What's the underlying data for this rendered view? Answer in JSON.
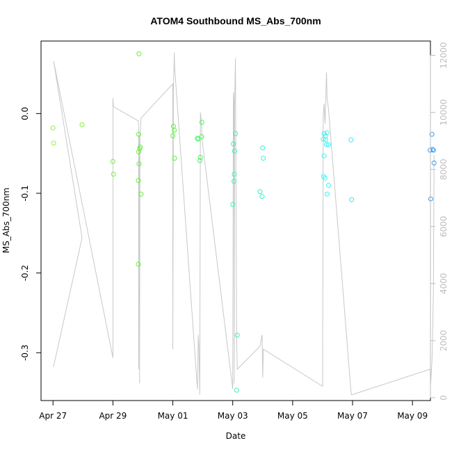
{
  "chart_data": {
    "type": "scatter",
    "title": "ATOM4 Southbound MS_Abs_700nm",
    "xlabel": "Date",
    "ylabel": "MS_Abs_700nm",
    "x_origin": "2018-04-27",
    "xlim": [
      -0.4,
      12.6
    ],
    "ylim": [
      -0.36,
      0.091
    ],
    "y2lim": [
      -100,
      12500
    ],
    "x_ticks": [
      {
        "value": 0,
        "label": "Apr 27"
      },
      {
        "value": 2,
        "label": "Apr 29"
      },
      {
        "value": 4,
        "label": "May 01"
      },
      {
        "value": 6,
        "label": "May 03"
      },
      {
        "value": 8,
        "label": "May 05"
      },
      {
        "value": 10,
        "label": "May 07"
      },
      {
        "value": 12,
        "label": "May 09"
      }
    ],
    "y_ticks": [
      {
        "value": 0.0,
        "label": "0.0"
      },
      {
        "value": -0.1,
        "label": "-0.1"
      },
      {
        "value": -0.2,
        "label": "-0.2"
      },
      {
        "value": -0.3,
        "label": "-0.3"
      }
    ],
    "y2_ticks": [
      {
        "value": 0,
        "label": "0"
      },
      {
        "value": 2000,
        "label": "2000"
      },
      {
        "value": 4000,
        "label": "4000"
      },
      {
        "value": 6000,
        "label": "6000"
      },
      {
        "value": 8000,
        "label": "8000"
      },
      {
        "value": 10000,
        "label": "10000"
      },
      {
        "value": 12000,
        "label": "12000"
      }
    ],
    "points": [
      {
        "x": 0.0,
        "y": -0.018,
        "color": "#8ff23c"
      },
      {
        "x": 0.02,
        "y": -0.037,
        "color": "#8ff23c"
      },
      {
        "x": 0.97,
        "y": -0.014,
        "color": "#84f23c"
      },
      {
        "x": 2.0,
        "y": -0.06,
        "color": "#74f23c"
      },
      {
        "x": 2.02,
        "y": -0.076,
        "color": "#74f23c"
      },
      {
        "x": 2.87,
        "y": 0.075,
        "color": "#66f23c"
      },
      {
        "x": 2.86,
        "y": -0.026,
        "color": "#66f23c"
      },
      {
        "x": 2.86,
        "y": -0.048,
        "color": "#66f23c"
      },
      {
        "x": 2.89,
        "y": -0.044,
        "color": "#66f23c"
      },
      {
        "x": 2.91,
        "y": -0.042,
        "color": "#66f23c"
      },
      {
        "x": 2.87,
        "y": -0.063,
        "color": "#66f23c"
      },
      {
        "x": 2.85,
        "y": -0.084,
        "color": "#66f23c"
      },
      {
        "x": 2.94,
        "y": -0.101,
        "color": "#66f23c"
      },
      {
        "x": 2.85,
        "y": -0.189,
        "color": "#66f23c"
      },
      {
        "x": 4.02,
        "y": -0.016,
        "color": "#5af23c"
      },
      {
        "x": 4.05,
        "y": -0.021,
        "color": "#5af23c"
      },
      {
        "x": 4.0,
        "y": -0.028,
        "color": "#5af23c"
      },
      {
        "x": 4.06,
        "y": -0.056,
        "color": "#5af23c"
      },
      {
        "x": 4.82,
        "y": -0.031,
        "color": "#44f259"
      },
      {
        "x": 4.85,
        "y": -0.032,
        "color": "#44f259"
      },
      {
        "x": 4.97,
        "y": -0.011,
        "color": "#44f259"
      },
      {
        "x": 4.96,
        "y": -0.029,
        "color": "#44f259"
      },
      {
        "x": 4.92,
        "y": -0.055,
        "color": "#44f259"
      },
      {
        "x": 4.9,
        "y": -0.059,
        "color": "#44f259"
      },
      {
        "x": 6.09,
        "y": -0.025,
        "color": "#3cf2b4"
      },
      {
        "x": 6.02,
        "y": -0.038,
        "color": "#3cf2b4"
      },
      {
        "x": 6.06,
        "y": -0.047,
        "color": "#3cf2b4"
      },
      {
        "x": 6.05,
        "y": -0.076,
        "color": "#3cf2b4"
      },
      {
        "x": 6.04,
        "y": -0.085,
        "color": "#3cf2b4"
      },
      {
        "x": 6.0,
        "y": -0.114,
        "color": "#3cf2b4"
      },
      {
        "x": 6.15,
        "y": -0.278,
        "color": "#3cf2b4"
      },
      {
        "x": 6.13,
        "y": -0.347,
        "color": "#3cf2b4"
      },
      {
        "x": 7.0,
        "y": -0.043,
        "color": "#3cf2c9"
      },
      {
        "x": 7.02,
        "y": -0.056,
        "color": "#3cf2c9"
      },
      {
        "x": 6.91,
        "y": -0.098,
        "color": "#3cf2c9"
      },
      {
        "x": 6.98,
        "y": -0.104,
        "color": "#3cf2c9"
      },
      {
        "x": 9.05,
        "y": -0.025,
        "color": "#3cf2f2"
      },
      {
        "x": 9.1,
        "y": -0.028,
        "color": "#3cf2f2"
      },
      {
        "x": 9.15,
        "y": -0.024,
        "color": "#3cf2f2"
      },
      {
        "x": 9.02,
        "y": -0.032,
        "color": "#3cf2f2"
      },
      {
        "x": 9.1,
        "y": -0.033,
        "color": "#3cf2f2"
      },
      {
        "x": 9.13,
        "y": -0.039,
        "color": "#3cf2f2"
      },
      {
        "x": 9.2,
        "y": -0.039,
        "color": "#3cf2f2"
      },
      {
        "x": 9.05,
        "y": -0.053,
        "color": "#3cf2f2"
      },
      {
        "x": 9.03,
        "y": -0.079,
        "color": "#3cf2f2"
      },
      {
        "x": 9.08,
        "y": -0.081,
        "color": "#3cf2f2"
      },
      {
        "x": 9.2,
        "y": -0.09,
        "color": "#3cf2f2"
      },
      {
        "x": 9.15,
        "y": -0.101,
        "color": "#3cf2f2"
      },
      {
        "x": 9.95,
        "y": -0.033,
        "color": "#3ce6f2"
      },
      {
        "x": 9.97,
        "y": -0.108,
        "color": "#3ce6f2"
      },
      {
        "x": 12.65,
        "y": -0.026,
        "color": "#3c9df2"
      },
      {
        "x": 12.59,
        "y": -0.046,
        "color": "#3c9df2"
      },
      {
        "x": 12.67,
        "y": -0.045,
        "color": "#3c9df2"
      },
      {
        "x": 12.7,
        "y": -0.046,
        "color": "#3c9df2"
      },
      {
        "x": 12.72,
        "y": -0.062,
        "color": "#3c9df2"
      },
      {
        "x": 12.61,
        "y": -0.107,
        "color": "#3c9df2"
      }
    ],
    "secondary_line": {
      "axis": "right",
      "color": "#c8c8c8",
      "x": [
        0.0,
        0.02,
        0.97,
        0.97,
        0.02,
        2.0,
        2.0,
        2.02,
        2.85,
        2.86,
        2.86,
        2.87,
        2.88,
        2.89,
        2.9,
        2.92,
        2.93,
        2.94,
        4.0,
        4.0,
        4.02,
        4.03,
        4.05,
        4.06,
        4.82,
        4.85,
        4.87,
        4.9,
        4.92,
        4.96,
        4.97,
        6.0,
        6.02,
        6.04,
        6.05,
        6.06,
        6.09,
        6.13,
        6.15,
        6.91,
        6.98,
        7.0,
        7.02,
        9.0,
        9.02,
        9.03,
        9.05,
        9.08,
        9.1,
        9.13,
        9.15,
        9.2,
        9.95,
        9.97,
        12.59,
        12.6,
        12.61,
        12.65,
        12.67,
        12.7,
        12.72
      ],
      "y": [
        1100,
        1100,
        5600,
        5600,
        11800,
        1400,
        10500,
        10200,
        9700,
        9500,
        1000,
        9200,
        9100,
        500,
        9300,
        9400,
        9600,
        9800,
        11000,
        1700,
        10800,
        11200,
        12100,
        11600,
        300,
        2200,
        1800,
        100,
        10000,
        9600,
        9100,
        300,
        10700,
        10400,
        500,
        10200,
        11900,
        2100,
        1000,
        1800,
        2200,
        700,
        1700,
        400,
        9800,
        10000,
        10300,
        9600,
        10200,
        11400,
        10500,
        10100,
        200,
        100,
        1000,
        700,
        500,
        1300,
        2000,
        3800,
        8500
      ]
    }
  }
}
